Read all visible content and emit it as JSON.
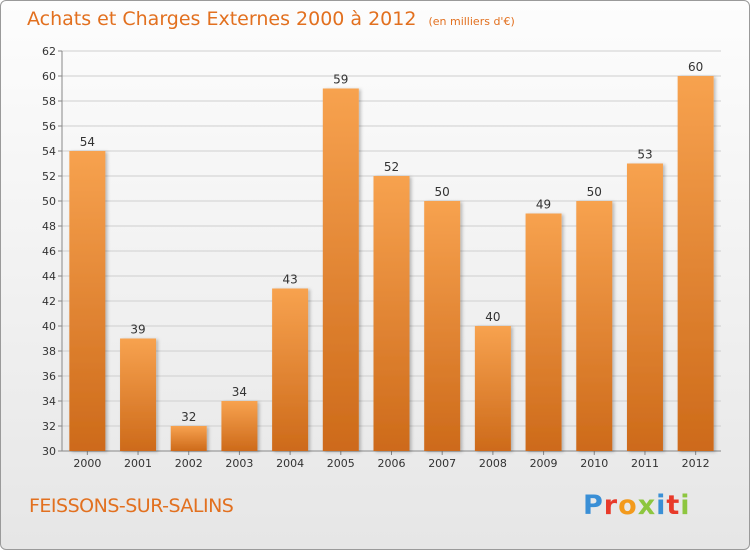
{
  "title": "Achats et Charges Externes 2000 à 2012",
  "unit": "(en milliers d'€)",
  "commune": "FEISSONS-SUR-SALINS",
  "brand": "Proxiti",
  "colors": {
    "title": "#e2701f",
    "bar_light": "#f7a24f",
    "bar_dark": "#cd6a1a",
    "grid": "#cfcfcf",
    "brand": [
      "#3a8fd6",
      "#e83a2a",
      "#f39a1c",
      "#8dc63f",
      "#3a8fd6",
      "#e83a2a",
      "#8dc63f"
    ]
  },
  "chart_data": {
    "type": "bar",
    "categories": [
      "2000",
      "2001",
      "2002",
      "2003",
      "2004",
      "2005",
      "2006",
      "2007",
      "2008",
      "2009",
      "2010",
      "2011",
      "2012"
    ],
    "values": [
      54,
      39,
      32,
      34,
      43,
      59,
      52,
      50,
      40,
      49,
      50,
      53,
      60
    ],
    "ylim": [
      30,
      62
    ],
    "yticks": [
      30,
      32,
      34,
      36,
      38,
      40,
      42,
      44,
      46,
      48,
      50,
      52,
      54,
      56,
      58,
      60,
      62
    ],
    "grid": true
  }
}
